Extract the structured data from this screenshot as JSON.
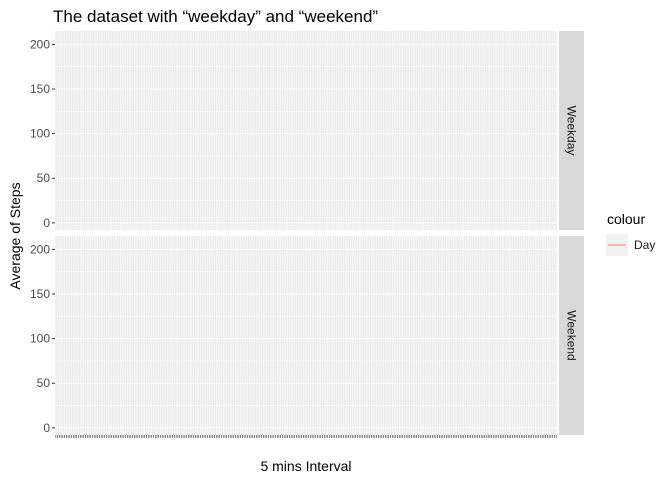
{
  "chart_data": {
    "type": "line",
    "title": "The dataset with “weekday” and “weekend”",
    "xlabel": "5 mins Interval",
    "ylabel": "Average of Steps",
    "x_type": "categorical-interval",
    "x_category_count": 288,
    "ylim": [
      -8,
      215
    ],
    "yticks": [
      0,
      50,
      100,
      150,
      200
    ],
    "grid": true,
    "facets": [
      "Weekday",
      "Weekend"
    ],
    "legend": {
      "title": "colour",
      "placement": "right",
      "entries": [
        {
          "label": "Day",
          "color": "#F8766D"
        }
      ]
    },
    "series": []
  },
  "colors": {
    "panel_bg": "#ebebeb",
    "grid": "#ffffff",
    "strip_bg": "#d9d9d9",
    "line": "#F8766D",
    "tick": "#333333"
  }
}
